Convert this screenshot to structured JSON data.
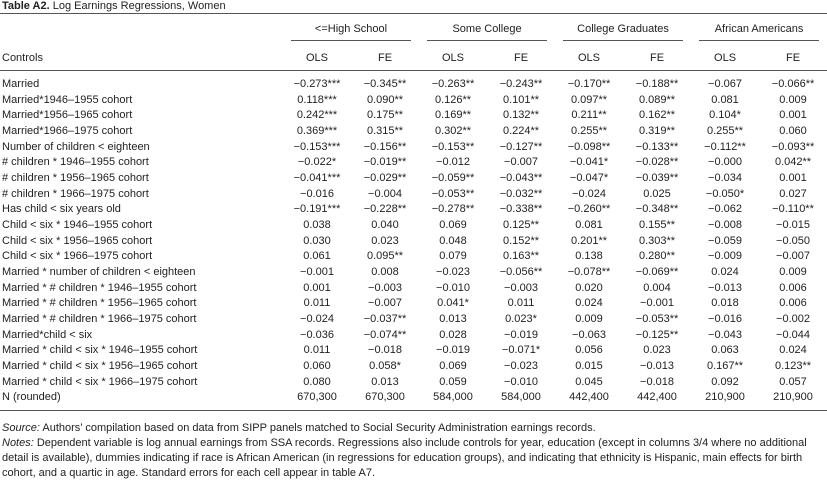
{
  "header": {
    "label": "Table A2.",
    "title": "Log Earnings Regressions, Women"
  },
  "table": {
    "stub_header": "Controls",
    "column_groups": [
      "<=High School",
      "Some College",
      "College Graduates",
      "African Americans"
    ],
    "columns": [
      "OLS",
      "FE",
      "OLS",
      "FE",
      "OLS",
      "FE",
      "OLS",
      "FE"
    ],
    "rows": [
      {
        "label": "Married",
        "values": [
          "−0.273***",
          "−0.345**",
          "−0.263**",
          "−0.243**",
          "−0.170**",
          "−0.188**",
          "−0.067",
          "−0.066**"
        ]
      },
      {
        "label": "Married*1946–1955 cohort",
        "values": [
          "0.118***",
          "0.090**",
          "0.126**",
          "0.101**",
          "0.097**",
          "0.089**",
          "0.081",
          "0.009"
        ]
      },
      {
        "label": "Married*1956–1965 cohort",
        "values": [
          "0.242***",
          "0.175**",
          "0.169**",
          "0.132**",
          "0.211**",
          "0.162**",
          "0.104*",
          "0.001"
        ]
      },
      {
        "label": "Married*1966–1975 cohort",
        "values": [
          "0.369***",
          "0.315**",
          "0.302**",
          "0.224**",
          "0.255**",
          "0.319**",
          "0.255**",
          "0.060"
        ]
      },
      {
        "label": "Number of children < eighteen",
        "values": [
          "−0.153***",
          "−0.156**",
          "−0.153**",
          "−0.127**",
          "−0.098**",
          "−0.133**",
          "−0.112**",
          "−0.093**"
        ]
      },
      {
        "label": "# children * 1946–1955 cohort",
        "values": [
          "−0.022*",
          "−0.019**",
          "−0.012",
          "−0.007",
          "−0.041*",
          "−0.028**",
          "−0.000",
          "0.042**"
        ]
      },
      {
        "label": "# children * 1956–1965 cohort",
        "values": [
          "−0.041***",
          "−0.029**",
          "−0.059**",
          "−0.043**",
          "−0.047*",
          "−0.039**",
          "−0.034",
          "0.001"
        ]
      },
      {
        "label": "# children * 1966–1975 cohort",
        "values": [
          "−0.016",
          "−0.004",
          "−0.053**",
          "−0.032**",
          "−0.024",
          "0.025",
          "−0.050*",
          "0.027"
        ]
      },
      {
        "label": "Has child < six years old",
        "values": [
          "−0.191***",
          "−0.228**",
          "−0.278**",
          "−0.338**",
          "−0.260**",
          "−0.348**",
          "−0.062",
          "−0.110**"
        ]
      },
      {
        "label": "Child < six * 1946–1955 cohort",
        "values": [
          "0.038",
          "0.040",
          "0.069",
          "0.125**",
          "0.081",
          "0.155**",
          "−0.008",
          "−0.015"
        ]
      },
      {
        "label": "Child < six * 1956–1965 cohort",
        "values": [
          "0.030",
          "0.023",
          "0.048",
          "0.152**",
          "0.201**",
          "0.303**",
          "−0.059",
          "−0.050"
        ]
      },
      {
        "label": "Child < six * 1966–1975 cohort",
        "values": [
          "0.061",
          "0.095**",
          "0.079",
          "0.163**",
          "0.138",
          "0.280**",
          "−0.009",
          "−0.007"
        ]
      },
      {
        "label": "Married * number of children < eighteen",
        "values": [
          "−0.001",
          "0.008",
          "−0.023",
          "−0.056**",
          "−0.078**",
          "−0.069**",
          "0.024",
          "0.009"
        ]
      },
      {
        "label": "Married * # children * 1946–1955 cohort",
        "values": [
          "0.001",
          "−0.003",
          "−0.010",
          "−0.003",
          "0.020",
          "0.004",
          "−0.013",
          "0.006"
        ]
      },
      {
        "label": "Married * # children * 1956–1965 cohort",
        "values": [
          "0.011",
          "−0.007",
          "0.041*",
          "0.011",
          "0.024",
          "−0.001",
          "0.018",
          "0.006"
        ]
      },
      {
        "label": "Married * # children * 1966–1975 cohort",
        "values": [
          "−0.024",
          "−0.037**",
          "0.013",
          "0.023*",
          "0.009",
          "−0.053**",
          "−0.016",
          "−0.002"
        ]
      },
      {
        "label": "Married*child < six",
        "values": [
          "−0.036",
          "−0.074**",
          "0.028",
          "−0.019",
          "−0.063",
          "−0.125**",
          "−0.043",
          "−0.044"
        ]
      },
      {
        "label": "Married * child < six * 1946–1955 cohort",
        "values": [
          "0.011",
          "−0.018",
          "−0.019",
          "−0.071*",
          "0.056",
          "0.023",
          "0.063",
          "0.024"
        ]
      },
      {
        "label": "Married * child < six * 1956–1965 cohort",
        "values": [
          "0.060",
          "0.058*",
          "0.069",
          "−0.023",
          "0.015",
          "−0.013",
          "0.167**",
          "0.123**"
        ]
      },
      {
        "label": "Married * child < six * 1966–1975 cohort",
        "values": [
          "0.080",
          "0.013",
          "0.059",
          "−0.010",
          "0.045",
          "−0.018",
          "0.092",
          "0.057"
        ]
      },
      {
        "label": "N (rounded)",
        "values": [
          "670,300",
          "670,300",
          "584,000",
          "584,000",
          "442,400",
          "442,400",
          "210,900",
          "210,900"
        ]
      }
    ]
  },
  "footnotes": {
    "source": {
      "label": "Source:",
      "text": "Authors’ compilation based on data from SIPP panels matched to Social Security Administration earnings records."
    },
    "notes": {
      "label": "Notes:",
      "text": "Dependent variable is log annual earnings from SSA records. Regressions also include controls for year, education (except in columns 3/4 where no additional detail is available), dummies indicating if race is African American (in regressions for education groups), and indicating that ethnicity is Hispanic, main effects for birth cohort, and a quartic in age. Standard errors for each cell appear in table A7."
    }
  }
}
